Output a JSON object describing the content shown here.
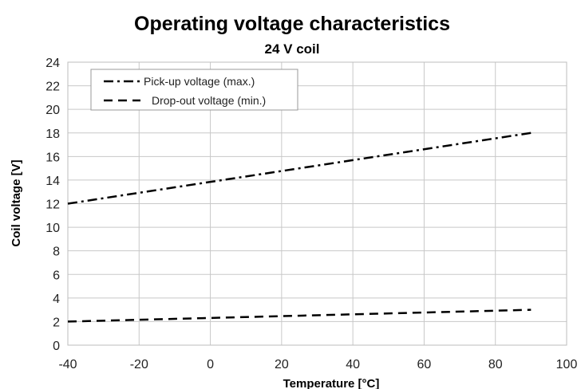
{
  "chart_data": {
    "type": "line",
    "title": "Operating voltage characteristics",
    "subtitle": "24 V coil",
    "xlabel": "Temperature [°C]",
    "ylabel": "Coil voltage [V]",
    "xlim": [
      -40,
      100
    ],
    "ylim": [
      0,
      24
    ],
    "xticks": [
      -40,
      -20,
      0,
      20,
      40,
      60,
      80,
      100
    ],
    "yticks": [
      0,
      2,
      4,
      6,
      8,
      10,
      12,
      14,
      16,
      18,
      20,
      22,
      24
    ],
    "grid": true,
    "legend_position": "top-left",
    "series": [
      {
        "name": "Pick-up voltage (max.)",
        "style": "dash-dot",
        "x": [
          -40,
          90
        ],
        "y": [
          12,
          18
        ]
      },
      {
        "name": "Drop-out voltage (min.)",
        "style": "dashed",
        "x": [
          -40,
          90
        ],
        "y": [
          2,
          3
        ]
      }
    ]
  }
}
